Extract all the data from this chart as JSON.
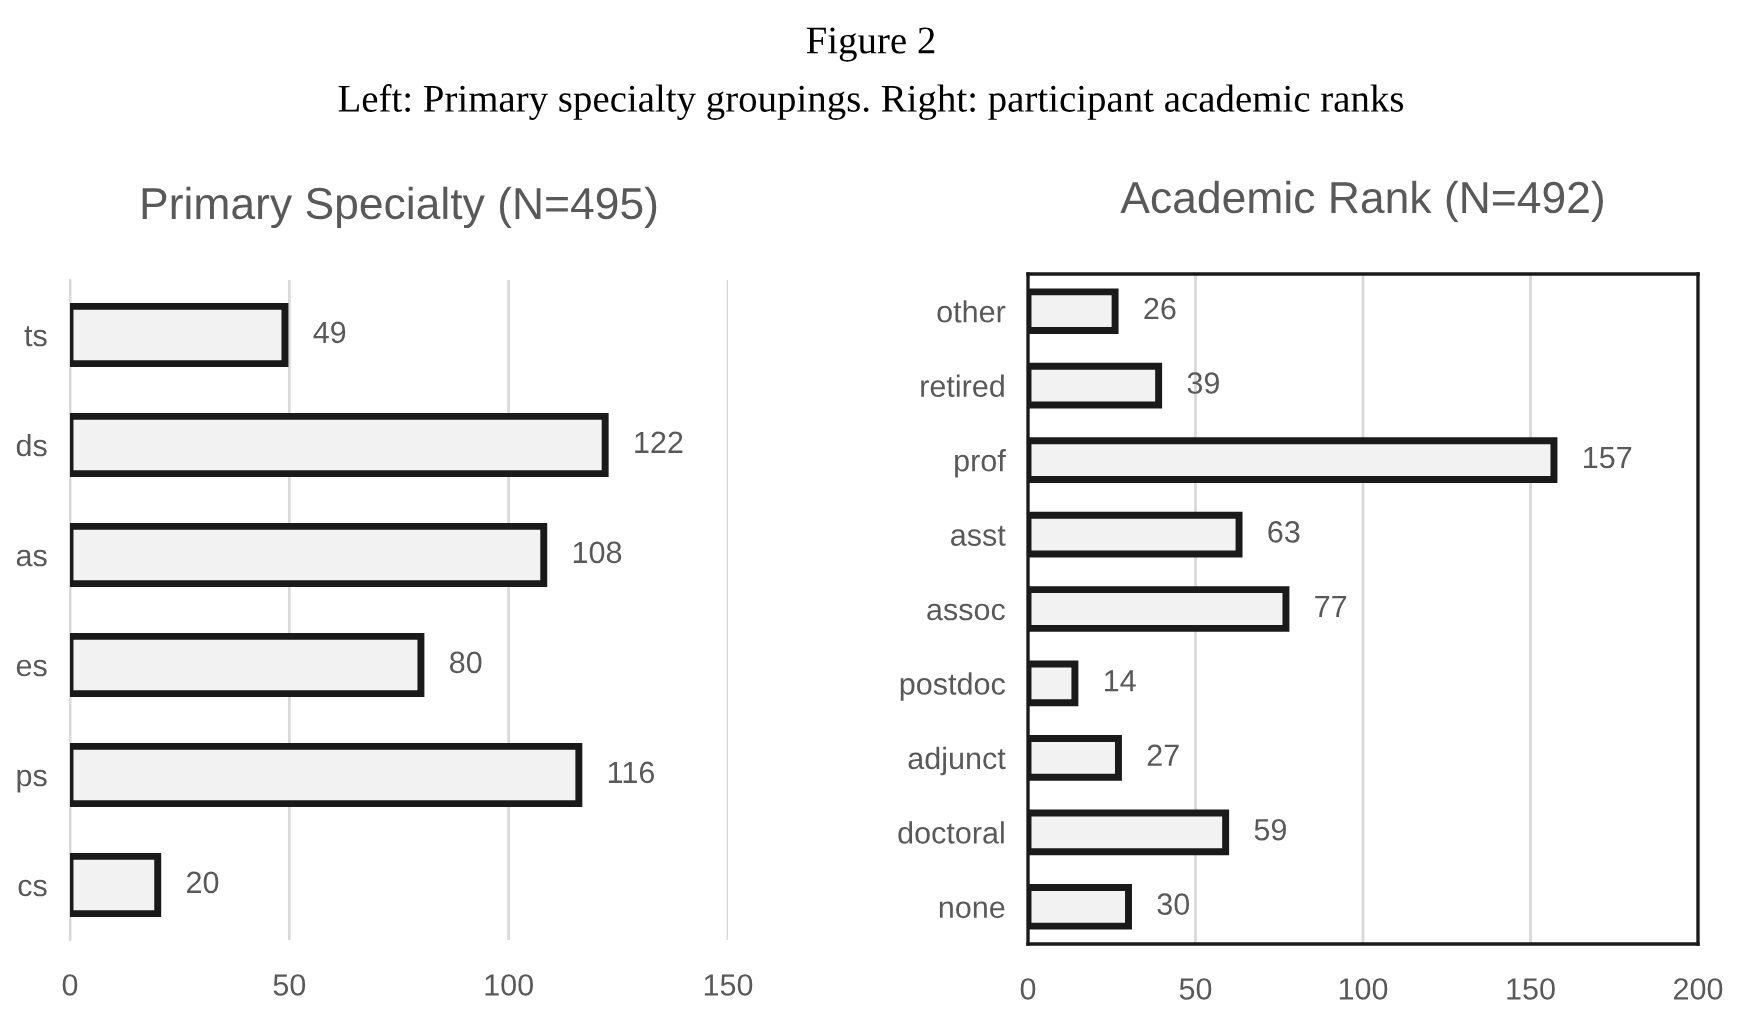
{
  "chart_data": [
    {
      "type": "bar",
      "orientation": "horizontal",
      "title": "Primary Specialty (N=495)",
      "annotations": [
        "Figure 2",
        "Left: Primary specialty groupings. Right: participant academic ranks"
      ],
      "categories": [
        "ts",
        "ds",
        "as",
        "es",
        "ps",
        "cs"
      ],
      "values": [
        49,
        122,
        108,
        80,
        116,
        20
      ],
      "color": "#f2f2f2",
      "xlim": [
        0,
        150
      ],
      "xticks": [
        0,
        50,
        100,
        150
      ],
      "grid": "x",
      "data_labels": true,
      "legend": false
    },
    {
      "type": "bar",
      "orientation": "horizontal",
      "title": "Academic Rank (N=492)",
      "categories": [
        "other",
        "retired",
        "prof",
        "asst",
        "assoc",
        "postdoc",
        "adjunct",
        "doctoral",
        "none"
      ],
      "values": [
        26,
        39,
        157,
        63,
        77,
        14,
        27,
        59,
        30
      ],
      "color": "#f2f2f2",
      "xlim": [
        0,
        200
      ],
      "xticks": [
        0,
        50,
        100,
        150,
        200
      ],
      "grid": "x",
      "data_labels": true,
      "legend": false
    }
  ]
}
